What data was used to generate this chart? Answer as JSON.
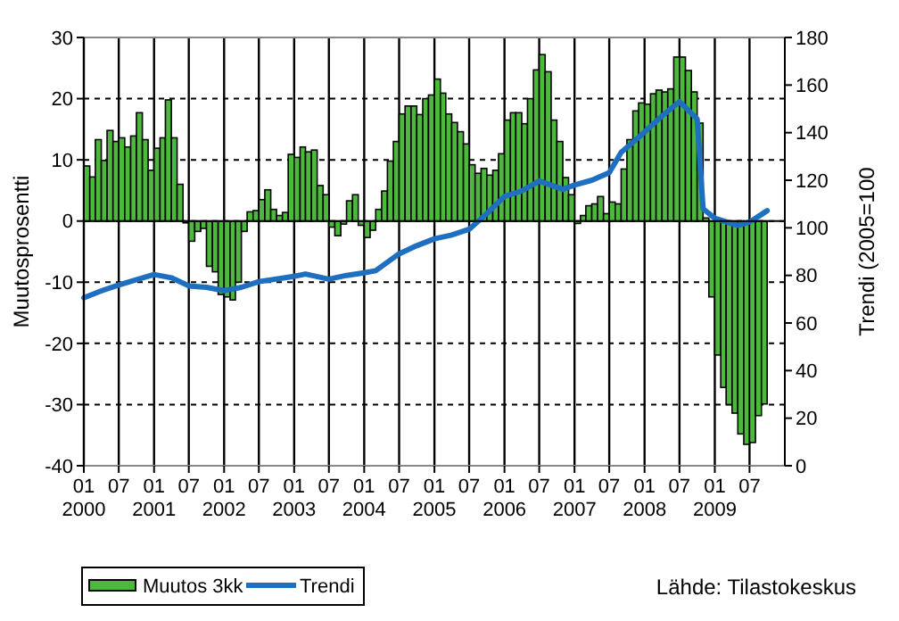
{
  "chart_data": {
    "type": "bar",
    "ylabel": "Muutosprosentti",
    "y2label": "Trendi (2005=100",
    "annotations": [
      "Lähde: Tilastokeskus"
    ],
    "xlim": [
      "2000-01",
      "2010-01"
    ],
    "xticks": [
      {
        "value": "2000-01",
        "label": "01\n2000"
      },
      {
        "value": "2000-07",
        "label": "07"
      },
      {
        "value": "2001-01",
        "label": "01\n2001"
      },
      {
        "value": "2001-07",
        "label": "07"
      },
      {
        "value": "2002-01",
        "label": "01\n2002"
      },
      {
        "value": "2002-07",
        "label": "07"
      },
      {
        "value": "2003-01",
        "label": "01\n2003"
      },
      {
        "value": "2003-07",
        "label": "07"
      },
      {
        "value": "2004-01",
        "label": "01\n2004"
      },
      {
        "value": "2004-07",
        "label": "07"
      },
      {
        "value": "2005-01",
        "label": "01\n2005"
      },
      {
        "value": "2005-07",
        "label": "07"
      },
      {
        "value": "2006-01",
        "label": "01\n2006"
      },
      {
        "value": "2006-07",
        "label": "07"
      },
      {
        "value": "2007-01",
        "label": "01\n2007"
      },
      {
        "value": "2007-07",
        "label": "07"
      },
      {
        "value": "2008-01",
        "label": "01\n2008"
      },
      {
        "value": "2008-07",
        "label": "07"
      },
      {
        "value": "2009-01",
        "label": "01\n2009"
      },
      {
        "value": "2009-07",
        "label": "07"
      }
    ],
    "ylim": [
      -40,
      30
    ],
    "yticks": [
      -40,
      -30,
      -20,
      -10,
      0,
      10,
      20,
      30
    ],
    "y2lim": [
      0,
      180
    ],
    "y2ticks": [
      0,
      20,
      40,
      60,
      80,
      100,
      120,
      140,
      160,
      180
    ],
    "grid": true,
    "legend": "bottom left",
    "series": [
      {
        "name": "Muutos 3kk",
        "color": "#4cb83c",
        "x": [
          "2000-01",
          "2000-02",
          "2000-03",
          "2000-04",
          "2000-05",
          "2000-06",
          "2000-07",
          "2000-08",
          "2000-09",
          "2000-10",
          "2000-11",
          "2000-12",
          "2001-01",
          "2001-02",
          "2001-03",
          "2001-04",
          "2001-05",
          "2001-06",
          "2001-07",
          "2001-08",
          "2001-09",
          "2001-10",
          "2001-11",
          "2001-12",
          "2002-01",
          "2002-02",
          "2002-03",
          "2002-04",
          "2002-05",
          "2002-06",
          "2002-07",
          "2002-08",
          "2002-09",
          "2002-10",
          "2002-11",
          "2002-12",
          "2003-01",
          "2003-02",
          "2003-03",
          "2003-04",
          "2003-05",
          "2003-06",
          "2003-07",
          "2003-08",
          "2003-09",
          "2003-10",
          "2003-11",
          "2003-12",
          "2004-01",
          "2004-02",
          "2004-03",
          "2004-04",
          "2004-05",
          "2004-06",
          "2004-07",
          "2004-08",
          "2004-09",
          "2004-10",
          "2004-11",
          "2004-12",
          "2005-01",
          "2005-02",
          "2005-03",
          "2005-04",
          "2005-05",
          "2005-06",
          "2005-07",
          "2005-08",
          "2005-09",
          "2005-10",
          "2005-11",
          "2005-12",
          "2006-01",
          "2006-02",
          "2006-03",
          "2006-04",
          "2006-05",
          "2006-06",
          "2006-07",
          "2006-08",
          "2006-09",
          "2006-10",
          "2006-11",
          "2006-12",
          "2007-01",
          "2007-02",
          "2007-03",
          "2007-04",
          "2007-05",
          "2007-06",
          "2007-07",
          "2007-08",
          "2007-09",
          "2007-10",
          "2007-11",
          "2007-12",
          "2008-01",
          "2008-02",
          "2008-03",
          "2008-04",
          "2008-05",
          "2008-06",
          "2008-07",
          "2008-08",
          "2008-09",
          "2008-10",
          "2008-11",
          "2008-12",
          "2009-01",
          "2009-02",
          "2009-03",
          "2009-04",
          "2009-05",
          "2009-06",
          "2009-07",
          "2009-08",
          "2009-09"
        ],
        "values": [
          9.0,
          7.2,
          13.3,
          9.9,
          14.8,
          13.0,
          13.6,
          12.1,
          13.9,
          17.7,
          13.3,
          8.3,
          11.9,
          13.6,
          19.8,
          13.6,
          6.0,
          -0.3,
          -3.3,
          -1.7,
          -1.2,
          -7.4,
          -8.3,
          -12.0,
          -12.4,
          -12.9,
          -10.0,
          -1.7,
          1.5,
          1.7,
          3.5,
          5.1,
          1.9,
          0.9,
          1.4,
          10.9,
          10.4,
          12.1,
          11.3,
          11.6,
          5.8,
          4.3,
          -1.0,
          -2.4,
          -0.5,
          3.3,
          4.3,
          -0.7,
          -2.7,
          -1.5,
          1.9,
          4.9,
          9.8,
          13.0,
          17.5,
          18.8,
          18.8,
          17.4,
          20.0,
          20.6,
          23.2,
          20.9,
          17.5,
          16.1,
          14.6,
          12.6,
          9.2,
          7.8,
          8.6,
          7.5,
          8.3,
          11.0,
          16.5,
          17.7,
          17.7,
          15.9,
          20.0,
          24.7,
          27.2,
          24.4,
          16.5,
          13.0,
          7.1,
          4.3,
          -0.4,
          0.9,
          2.5,
          2.8,
          4.0,
          1.2,
          3.1,
          2.8,
          8.5,
          13.3,
          18.0,
          19.3,
          19.1,
          20.8,
          21.4,
          21.1,
          21.6,
          26.8,
          26.8,
          24.6,
          21.1,
          16.0,
          0.5,
          -12.4,
          -21.9,
          -27.2,
          -30.0,
          -31.4,
          -34.8,
          -36.5,
          -36.2,
          -31.8,
          -29.9
        ]
      },
      {
        "name": "Trendi",
        "type": "line",
        "axis": "y2",
        "color": "#1f6fc0",
        "x": [
          "2000-01",
          "2000-04",
          "2000-07",
          "2001-01",
          "2001-04",
          "2001-07",
          "2001-10",
          "2002-01",
          "2002-04",
          "2002-07",
          "2003-01",
          "2003-03",
          "2003-07",
          "2003-10",
          "2004-01",
          "2004-03",
          "2004-07",
          "2004-10",
          "2005-01",
          "2005-04",
          "2005-07",
          "2005-10",
          "2006-01",
          "2006-04",
          "2006-07",
          "2006-11",
          "2007-01",
          "2007-04",
          "2007-07",
          "2007-09",
          "2007-12",
          "2008-04",
          "2008-07",
          "2008-10",
          "2008-11",
          "2009-01",
          "2009-05",
          "2009-07",
          "2009-10"
        ],
        "values": [
          70.6,
          73.5,
          76,
          80.4,
          79,
          75.6,
          75,
          73.6,
          75,
          77.4,
          79.6,
          80.6,
          78.4,
          80,
          81.1,
          82,
          89.1,
          92.5,
          95.4,
          97,
          99.4,
          106,
          113.2,
          115.5,
          119.7,
          116.2,
          118,
          120,
          123.2,
          131.7,
          138,
          147,
          153,
          145.7,
          108,
          104,
          101,
          102.4,
          107.2
        ]
      }
    ]
  }
}
